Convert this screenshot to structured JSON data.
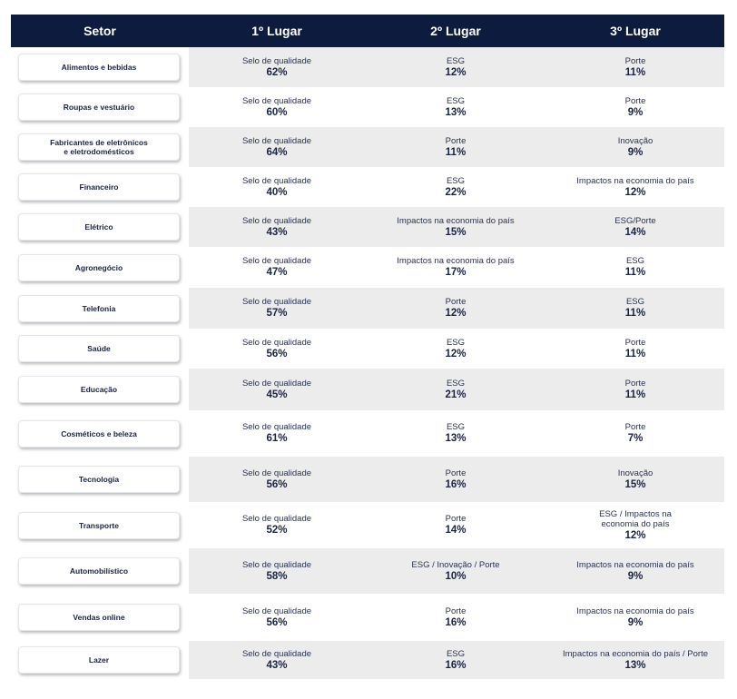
{
  "headers": {
    "sector": "Setor",
    "first": "1º Lugar",
    "second": "2º Lugar",
    "third": "3º Lugar"
  },
  "rows": [
    {
      "sector": "Alimentos e bebidas",
      "first": {
        "label": "Selo de qualidade",
        "value": "62%"
      },
      "second": {
        "label": "ESG",
        "value": "12%"
      },
      "third": {
        "label": "Porte",
        "value": "11%"
      }
    },
    {
      "sector": "Roupas e vestuário",
      "first": {
        "label": "Selo de qualidade",
        "value": "60%"
      },
      "second": {
        "label": "ESG",
        "value": "13%"
      },
      "third": {
        "label": "Porte",
        "value": "9%"
      }
    },
    {
      "sector": "Fabricantes de eletrônicos\ne eletrodomésticos",
      "first": {
        "label": "Selo de qualidade",
        "value": "64%"
      },
      "second": {
        "label": "Porte",
        "value": "11%"
      },
      "third": {
        "label": "Inovação",
        "value": "9%"
      }
    },
    {
      "sector": "Financeiro",
      "first": {
        "label": "Selo de qualidade",
        "value": "40%"
      },
      "second": {
        "label": "ESG",
        "value": "22%"
      },
      "third": {
        "label": "Impactos na economia do país",
        "value": "12%"
      }
    },
    {
      "sector": "Elétrico",
      "first": {
        "label": "Selo de qualidade",
        "value": "43%"
      },
      "second": {
        "label": "Impactos na economia do país",
        "value": "15%"
      },
      "third": {
        "label": "ESG/Porte",
        "value": "14%"
      }
    },
    {
      "sector": "Agronegócio",
      "first": {
        "label": "Selo de qualidade",
        "value": "47%"
      },
      "second": {
        "label": "Impactos na economia do país",
        "value": "17%"
      },
      "third": {
        "label": "ESG",
        "value": "11%"
      }
    },
    {
      "sector": "Telefonia",
      "first": {
        "label": "Selo de qualidade",
        "value": "57%"
      },
      "second": {
        "label": "Porte",
        "value": "12%"
      },
      "third": {
        "label": "ESG",
        "value": "11%"
      }
    },
    {
      "sector": "Saúde",
      "first": {
        "label": "Selo de qualidade",
        "value": "56%"
      },
      "second": {
        "label": "ESG",
        "value": "12%"
      },
      "third": {
        "label": "Porte",
        "value": "11%"
      }
    },
    {
      "sector": "Educação",
      "first": {
        "label": "Selo de qualidade",
        "value": "45%"
      },
      "second": {
        "label": "ESG",
        "value": "21%"
      },
      "third": {
        "label": "Porte",
        "value": "11%"
      }
    },
    {
      "sector": "Cosméticos e beleza",
      "first": {
        "label": "Selo de qualidade",
        "value": "61%"
      },
      "second": {
        "label": "ESG",
        "value": "13%"
      },
      "third": {
        "label": "Porte",
        "value": "7%"
      }
    },
    {
      "sector": "Tecnologia",
      "first": {
        "label": "Selo de qualidade",
        "value": "56%"
      },
      "second": {
        "label": "Porte",
        "value": "16%"
      },
      "third": {
        "label": "Inovação",
        "value": "15%"
      }
    },
    {
      "sector": "Transporte",
      "first": {
        "label": "Selo de qualidade",
        "value": "52%"
      },
      "second": {
        "label": "Porte",
        "value": "14%"
      },
      "third": {
        "label": "ESG / Impactos na\neconomia do país",
        "value": "12%"
      }
    },
    {
      "sector": "Automobilístico",
      "first": {
        "label": "Selo de qualidade",
        "value": "58%"
      },
      "second": {
        "label": "ESG / Inovação / Porte",
        "value": "10%"
      },
      "third": {
        "label": "Impactos na economia do país",
        "value": "9%"
      }
    },
    {
      "sector": "Vendas online",
      "first": {
        "label": "Selo de qualidade",
        "value": "56%"
      },
      "second": {
        "label": "Porte",
        "value": "16%"
      },
      "third": {
        "label": "Impactos na economia do país",
        "value": "9%"
      }
    },
    {
      "sector": "Lazer",
      "first": {
        "label": "Selo de qualidade",
        "value": "43%"
      },
      "second": {
        "label": "ESG",
        "value": "16%"
      },
      "third": {
        "label": "Impactos na economia do país / Porte",
        "value": "13%"
      }
    }
  ],
  "colors": {
    "header_bg": "#0d1b3e",
    "header_text": "#ffffff",
    "shade": "#ececec",
    "text": "#1a2340"
  }
}
